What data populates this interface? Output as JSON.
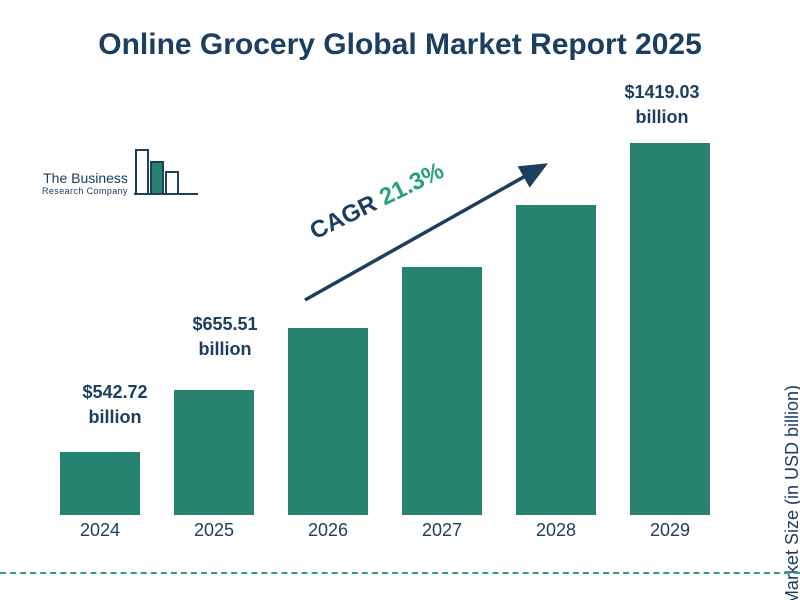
{
  "title": "Online Grocery Global Market Report 2025",
  "logo": {
    "line1": "The Business",
    "line2": "Research Company"
  },
  "cagr": {
    "label": "CAGR",
    "value": "21.3%"
  },
  "y_axis_label": "Market Size (in USD billion)",
  "colors": {
    "bar": "#27836f",
    "title": "#1c3f60",
    "cagr_value": "#2aa273",
    "dashed_rule": "#2a9d8f",
    "arrow": "#1c3f60"
  },
  "chart_data": {
    "type": "bar",
    "title": "Online Grocery Global Market Report 2025",
    "xlabel": "",
    "ylabel": "Market Size (in USD billion)",
    "categories": [
      "2024",
      "2025",
      "2026",
      "2027",
      "2028",
      "2029"
    ],
    "values": [
      542.72,
      655.51,
      795.13,
      964.49,
      1169.93,
      1419.03
    ],
    "value_labels": [
      {
        "amount": "$542.72",
        "unit": "billion"
      },
      {
        "amount": "$655.51",
        "unit": "billion"
      },
      null,
      null,
      null,
      {
        "amount": "$1419.03",
        "unit": "billion"
      }
    ],
    "annotations": [
      "CAGR 21.3%"
    ],
    "legend": "none",
    "grid": false,
    "ylim": [
      0,
      1500
    ]
  }
}
